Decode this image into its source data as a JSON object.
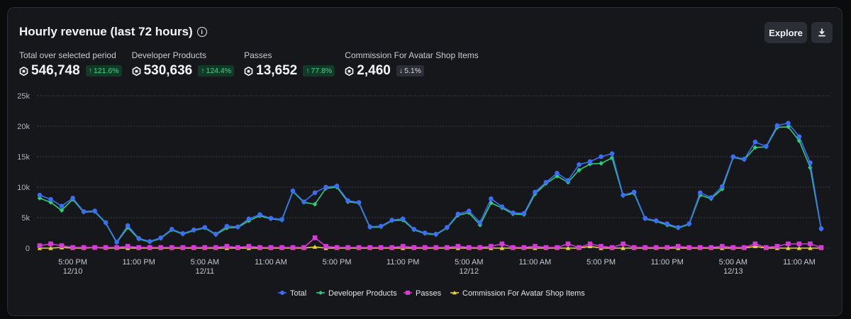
{
  "header": {
    "title": "Hourly revenue (last 72 hours)",
    "info_icon": "info-icon",
    "explore_label": "Explore",
    "download_icon": "download-icon"
  },
  "stats": [
    {
      "label": "Total over selected period",
      "value": "546,748",
      "change": "121.6%",
      "direction": "up"
    },
    {
      "label": "Developer Products",
      "value": "530,636",
      "change": "124.4%",
      "direction": "up"
    },
    {
      "label": "Passes",
      "value": "13,652",
      "change": "77.8%",
      "direction": "up"
    },
    {
      "label": "Commission For Avatar Shop Items",
      "value": "2,460",
      "change": "5.1%",
      "direction": "down"
    }
  ],
  "colors": {
    "total": "#3b6ef5",
    "dev": "#2ecf7a",
    "passes": "#d63bd8",
    "commission": "#e8d23a"
  },
  "chart_data": {
    "type": "line",
    "title": "Hourly revenue (last 72 hours)",
    "ylim": [
      0,
      25000
    ],
    "yticks": [
      {
        "v": 0,
        "label": "0"
      },
      {
        "v": 5000,
        "label": "5k"
      },
      {
        "v": 10000,
        "label": "10k"
      },
      {
        "v": 15000,
        "label": "15k"
      },
      {
        "v": 20000,
        "label": "20k"
      },
      {
        "v": 25000,
        "label": "25k"
      }
    ],
    "xticks": [
      {
        "i": 3,
        "l1": "5:00 PM",
        "l2": "12/10"
      },
      {
        "i": 9,
        "l1": "11:00 PM",
        "l2": ""
      },
      {
        "i": 15,
        "l1": "5:00 AM",
        "l2": "12/11"
      },
      {
        "i": 21,
        "l1": "11:00 AM",
        "l2": ""
      },
      {
        "i": 27,
        "l1": "5:00 PM",
        "l2": ""
      },
      {
        "i": 33,
        "l1": "11:00 PM",
        "l2": ""
      },
      {
        "i": 39,
        "l1": "5:00 AM",
        "l2": "12/12"
      },
      {
        "i": 45,
        "l1": "11:00 AM",
        "l2": ""
      },
      {
        "i": 51,
        "l1": "5:00 PM",
        "l2": ""
      },
      {
        "i": 57,
        "l1": "11:00 PM",
        "l2": ""
      },
      {
        "i": 63,
        "l1": "5:00 AM",
        "l2": "12/13"
      },
      {
        "i": 69,
        "l1": "11:00 AM",
        "l2": ""
      }
    ],
    "series": [
      {
        "name": "Total",
        "key": "total",
        "marker": "circle",
        "values": [
          8700,
          8000,
          6900,
          8200,
          6000,
          6100,
          4200,
          1000,
          3700,
          1600,
          1100,
          1700,
          3100,
          2400,
          3000,
          3400,
          2300,
          3600,
          3500,
          4800,
          5500,
          4900,
          4700,
          9400,
          7600,
          9100,
          10000,
          10200,
          7800,
          7500,
          3500,
          3600,
          4600,
          4800,
          3100,
          2500,
          2300,
          3400,
          5600,
          6100,
          4200,
          8100,
          6800,
          5800,
          5700,
          9200,
          10800,
          12300,
          11100,
          13700,
          14200,
          15000,
          15500,
          8700,
          9200,
          4900,
          4500,
          4000,
          3400,
          4000,
          9100,
          8300,
          10100,
          15000,
          14600,
          17400,
          16700,
          20100,
          20500,
          18300,
          14000,
          3200
        ]
      },
      {
        "name": "Developer Products",
        "key": "dev",
        "marker": "diamond",
        "values": [
          8200,
          7500,
          6200,
          8000,
          5900,
          6000,
          4100,
          900,
          3400,
          1500,
          1000,
          1600,
          3000,
          2300,
          2900,
          3300,
          2200,
          3300,
          3400,
          4500,
          5300,
          4800,
          4600,
          9300,
          7500,
          7200,
          9800,
          10000,
          7600,
          7400,
          3400,
          3500,
          4500,
          4600,
          3000,
          2400,
          2200,
          3300,
          5400,
          5800,
          3800,
          7400,
          6600,
          5600,
          5500,
          8900,
          10600,
          11800,
          10800,
          12800,
          13800,
          13900,
          14800,
          8600,
          9000,
          4800,
          4400,
          3800,
          3300,
          3900,
          8700,
          8100,
          9700,
          14900,
          14500,
          16500,
          16600,
          19800,
          19900,
          17600,
          13200,
          3100
        ]
      },
      {
        "name": "Passes",
        "key": "passes",
        "marker": "square",
        "values": [
          400,
          700,
          400,
          100,
          100,
          100,
          100,
          100,
          300,
          100,
          100,
          100,
          100,
          100,
          100,
          100,
          100,
          300,
          100,
          300,
          100,
          100,
          100,
          100,
          100,
          1700,
          300,
          100,
          100,
          100,
          100,
          100,
          100,
          300,
          100,
          100,
          100,
          100,
          300,
          100,
          100,
          300,
          700,
          100,
          100,
          300,
          100,
          100,
          700,
          100,
          700,
          300,
          100,
          700,
          100,
          100,
          100,
          100,
          300,
          100,
          100,
          100,
          300,
          100,
          100,
          700,
          100,
          300,
          700,
          700,
          700,
          100
        ]
      },
      {
        "name": "Commission For Avatar Shop Items",
        "key": "commission",
        "marker": "triangle",
        "values": [
          0,
          0,
          100,
          0,
          0,
          100,
          0,
          0,
          0,
          0,
          0,
          0,
          0,
          0,
          0,
          0,
          0,
          0,
          0,
          0,
          0,
          0,
          0,
          0,
          0,
          200,
          0,
          0,
          0,
          0,
          0,
          0,
          0,
          0,
          0,
          0,
          0,
          0,
          0,
          0,
          0,
          0,
          0,
          0,
          0,
          0,
          0,
          0,
          0,
          0,
          300,
          0,
          0,
          0,
          0,
          0,
          0,
          0,
          0,
          0,
          0,
          0,
          0,
          0,
          0,
          300,
          0,
          0,
          0,
          0,
          0,
          0
        ]
      }
    ]
  }
}
